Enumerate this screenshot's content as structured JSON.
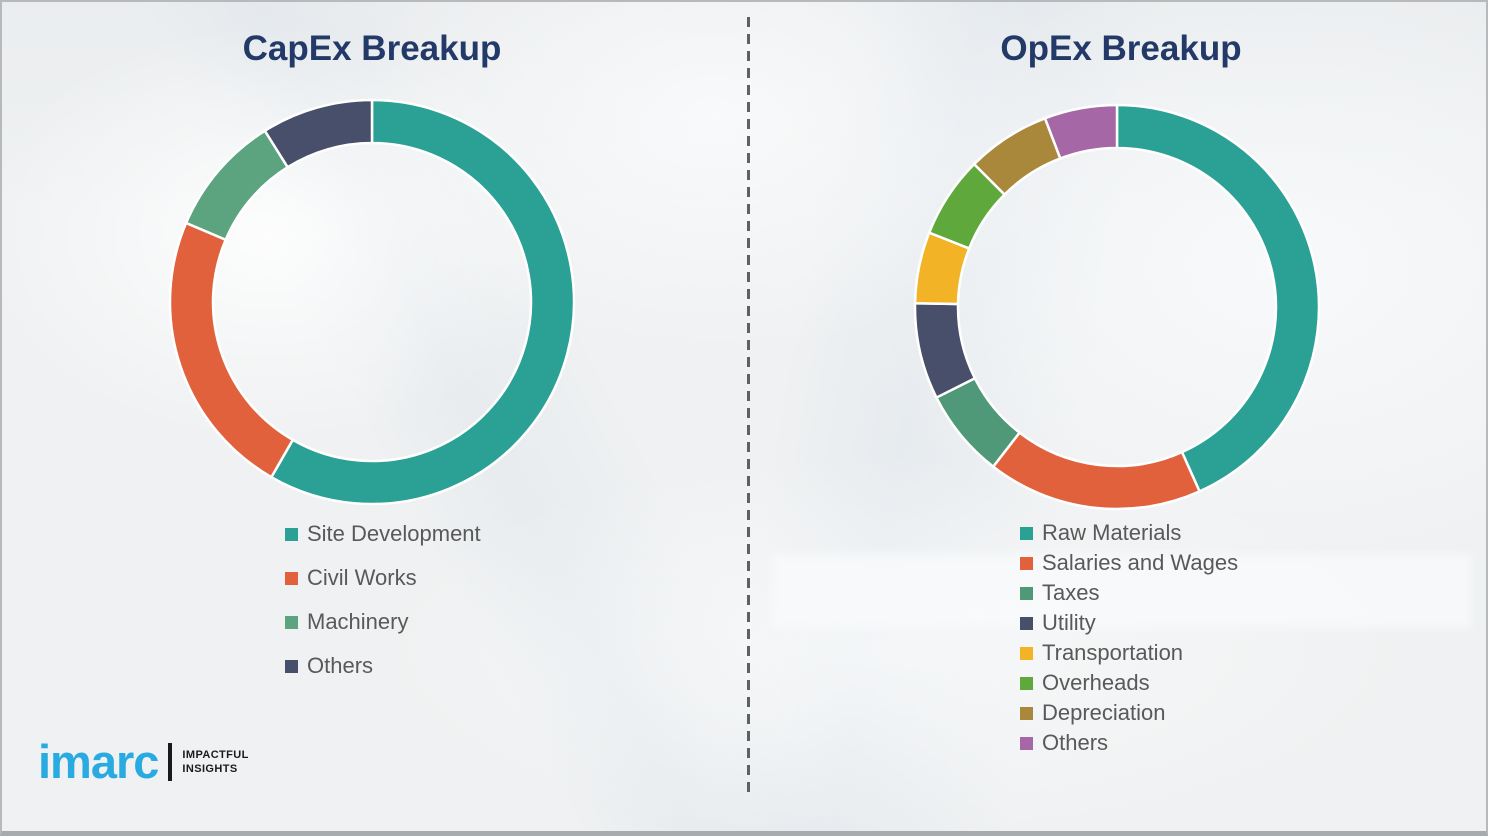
{
  "page": {
    "background_color": "#eff1f2",
    "frame_border_color": "#b7babc"
  },
  "divider": {
    "style": "dashed-vertical",
    "color": "#4a4d50"
  },
  "text_colors": {
    "title": "#233A69",
    "legend": "#595959"
  },
  "chart_data": [
    {
      "type": "pie",
      "subtype": "donut",
      "title": "CapEx Breakup",
      "start_angle_deg": 0,
      "direction": "clockwise",
      "hole_ratio": 0.785,
      "legend_position": "below-left",
      "labels": [
        "Site Development",
        "Civil Works",
        "Machinery",
        "Others"
      ],
      "values": [
        58.3,
        23.1,
        9.7,
        8.9
      ],
      "colors": [
        "#2BA094",
        "#E2613D",
        "#5CA37F",
        "#474F6B"
      ]
    },
    {
      "type": "pie",
      "subtype": "donut",
      "title": "OpEx Breakup",
      "start_angle_deg": 0,
      "direction": "clockwise",
      "hole_ratio": 0.785,
      "legend_position": "below-left",
      "labels": [
        "Raw Materials",
        "Salaries and Wages",
        "Taxes",
        "Utility",
        "Transportation",
        "Overheads",
        "Depreciation",
        "Others"
      ],
      "values": [
        43.3,
        17.2,
        7.1,
        7.7,
        5.7,
        6.5,
        6.7,
        5.8
      ],
      "colors": [
        "#2BA094",
        "#E2613D",
        "#4F9878",
        "#474F6B",
        "#F2B327",
        "#5FA83C",
        "#A9883C",
        "#A667A6"
      ]
    }
  ],
  "logo": {
    "brand": "imarc",
    "brand_color": "#29ABE2",
    "tagline_line1": "IMPACTFUL",
    "tagline_line2": "INSIGHTS"
  }
}
